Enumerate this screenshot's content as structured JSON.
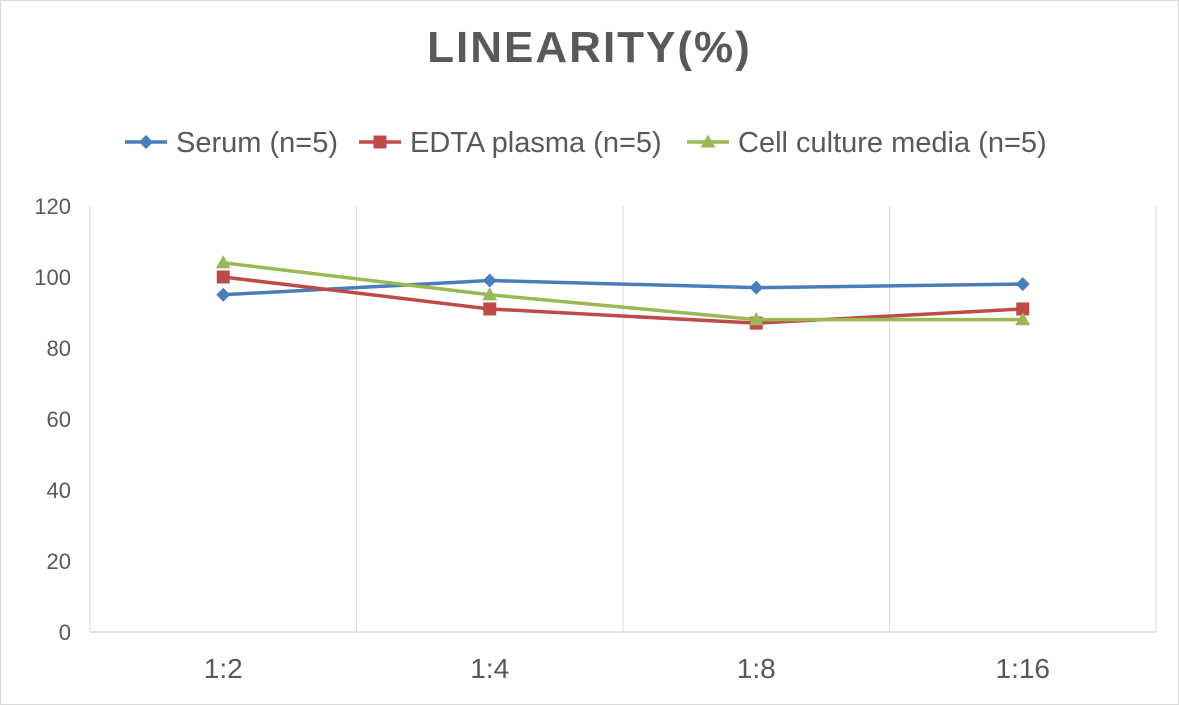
{
  "chart_data": {
    "type": "line",
    "title": "LINEARITY(%)",
    "categories": [
      "1:2",
      "1:4",
      "1:8",
      "1:16"
    ],
    "ylim": [
      0,
      120
    ],
    "yticks": [
      0,
      20,
      40,
      60,
      80,
      100,
      120
    ],
    "grid": "vertical",
    "legend_position": "top",
    "series": [
      {
        "name": "Serum (n=5)",
        "values": [
          95,
          99,
          97,
          98
        ],
        "color": "#4a7ebb",
        "marker": "diamond"
      },
      {
        "name": "EDTA plasma (n=5)",
        "values": [
          100,
          91,
          87,
          91
        ],
        "color": "#be4b48",
        "marker": "square"
      },
      {
        "name": "Cell culture media (n=5)",
        "values": [
          104,
          95,
          88,
          88
        ],
        "color": "#98b954",
        "marker": "triangle"
      }
    ]
  }
}
